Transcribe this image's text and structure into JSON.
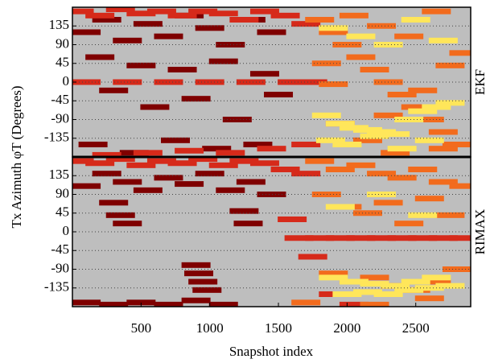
{
  "chart_data": [
    {
      "type": "scatter",
      "ylabel": "Tx Azimuth φT (Degrees)",
      "panel_label": "EKF",
      "background": "#bebebe",
      "xlim": [
        0,
        2900
      ],
      "ylim": [
        -180,
        180
      ],
      "yticks": [
        -135,
        -90,
        -45,
        0,
        45,
        90,
        135
      ],
      "grid": true,
      "series": [
        {
          "color": "#7f0000",
          "x": [
            100,
            250,
            400,
            550,
            700,
            850,
            1000,
            1150,
            1300,
            1450,
            200,
            500,
            800,
            1100,
            1400,
            300,
            600,
            900,
            1200,
            1500,
            150,
            450,
            750,
            1050,
            1350
          ],
          "y": [
            120,
            150,
            100,
            140,
            110,
            160,
            130,
            90,
            150,
            120,
            60,
            40,
            30,
            50,
            20,
            -20,
            -60,
            -40,
            -90,
            -30,
            -150,
            -170,
            -140,
            -160,
            -150
          ]
        },
        {
          "color": "#d62a1a",
          "x": [
            50,
            200,
            350,
            500,
            650,
            800,
            950,
            1100,
            1250,
            1400,
            1550,
            1700,
            100,
            400,
            700,
            1000,
            1300,
            1600,
            1750,
            250,
            550,
            850,
            1150,
            1450,
            1700
          ],
          "y": [
            170,
            160,
            175,
            165,
            170,
            160,
            170,
            165,
            150,
            170,
            160,
            140,
            0,
            0,
            0,
            0,
            0,
            0,
            0,
            -175,
            -170,
            -165,
            -170,
            -160,
            -150
          ]
        },
        {
          "color": "#f26b1d",
          "x": [
            1800,
            1900,
            2000,
            2100,
            2200,
            2300,
            2400,
            2500,
            2600,
            2700,
            2800,
            1850,
            2050,
            2250,
            2450,
            2650,
            2850,
            1950,
            2150,
            2350,
            2550,
            2750,
            1900,
            2300,
            2700
          ],
          "y": [
            150,
            120,
            90,
            60,
            30,
            0,
            -30,
            -60,
            -90,
            -120,
            -150,
            45,
            160,
            135,
            110,
            170,
            70,
            -100,
            -140,
            -170,
            -20,
            40,
            -5,
            -80,
            -160
          ]
        },
        {
          "color": "#ffe65a",
          "x": [
            1850,
            1950,
            2050,
            2150,
            2250,
            2350,
            2450,
            2550,
            2650,
            2750,
            1900,
            2100,
            2300,
            2500,
            2700,
            1880,
            2000,
            2200,
            2400,
            2600
          ],
          "y": [
            -80,
            -100,
            -110,
            -115,
            -120,
            -125,
            -90,
            -70,
            -60,
            -50,
            130,
            110,
            90,
            150,
            100,
            -140,
            -150,
            -130,
            -160,
            -140
          ]
        }
      ]
    },
    {
      "type": "scatter",
      "panel_label": "RIMAX",
      "xlabel": "Snapshot index",
      "background": "#bebebe",
      "xlim": [
        0,
        2900
      ],
      "ylim": [
        -180,
        180
      ],
      "yticks": [
        -135,
        -90,
        -45,
        0,
        45,
        90,
        135
      ],
      "xticks": [
        500,
        1000,
        1500,
        2000,
        2500
      ],
      "grid": true,
      "series": [
        {
          "color": "#7f0000",
          "x": [
            100,
            250,
            400,
            550,
            700,
            850,
            1000,
            1150,
            1300,
            1450,
            300,
            350,
            400,
            900,
            920,
            950,
            980,
            1250,
            1280,
            100,
            300,
            500,
            700,
            900,
            1100
          ],
          "y": [
            110,
            140,
            120,
            100,
            130,
            115,
            140,
            100,
            120,
            90,
            70,
            40,
            20,
            -80,
            -100,
            -120,
            -140,
            50,
            20,
            -170,
            -175,
            -170,
            -175,
            -165,
            -175
          ]
        },
        {
          "color": "#d62a1a",
          "x": [
            50,
            200,
            350,
            500,
            650,
            800,
            950,
            1100,
            1250,
            1400,
            1550,
            1700,
            1650,
            1800,
            1950,
            2100,
            2250,
            2400,
            2550,
            2700,
            2850,
            1600,
            1750,
            1900,
            2050
          ],
          "y": [
            170,
            165,
            175,
            160,
            170,
            165,
            175,
            160,
            170,
            165,
            150,
            140,
            -15,
            -15,
            -15,
            -15,
            -15,
            -15,
            -15,
            -15,
            -15,
            30,
            -60,
            -150,
            -175
          ]
        },
        {
          "color": "#f26b1d",
          "x": [
            1800,
            1950,
            2100,
            2250,
            2400,
            2550,
            2700,
            2850,
            1850,
            2000,
            2150,
            2300,
            2450,
            2600,
            2750,
            1900,
            2050,
            2200,
            2350,
            2500,
            2650,
            2800,
            1700,
            2200,
            2600
          ],
          "y": [
            170,
            150,
            160,
            140,
            130,
            150,
            120,
            110,
            90,
            60,
            45,
            70,
            20,
            80,
            40,
            -100,
            -120,
            -110,
            -130,
            -140,
            -120,
            -90,
            -170,
            -175,
            -160
          ]
        },
        {
          "color": "#ffe65a",
          "x": [
            1900,
            2050,
            2200,
            2350,
            2500,
            2650,
            2000,
            2150,
            2300,
            2450,
            2600,
            2750,
            1950,
            2250,
            2550
          ],
          "y": [
            -110,
            -120,
            -125,
            -130,
            -120,
            -110,
            -150,
            -145,
            -150,
            -140,
            -135,
            -130,
            60,
            90,
            40
          ]
        }
      ]
    }
  ]
}
